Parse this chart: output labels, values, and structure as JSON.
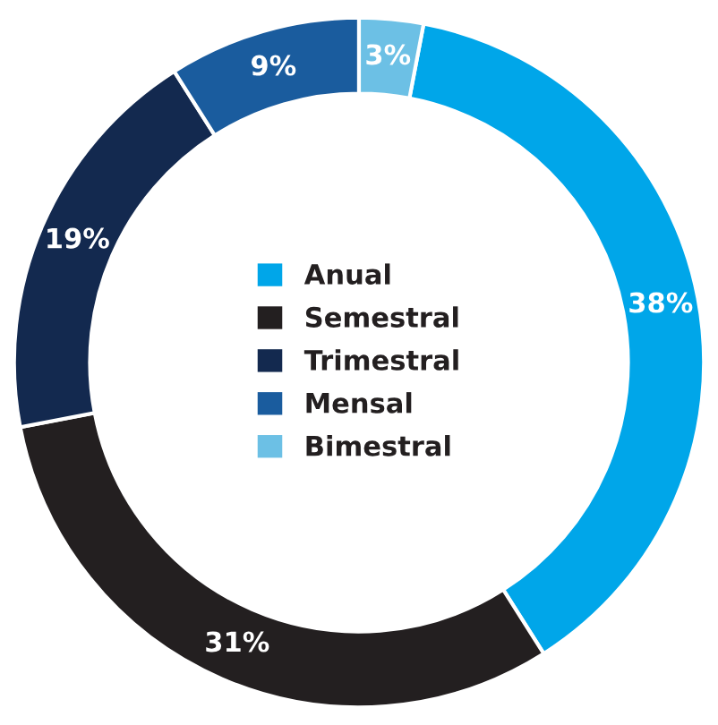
{
  "chart_data": {
    "type": "donut",
    "categories": [
      "Anual",
      "Semestral",
      "Trimestral",
      "Mensal",
      "Bimestral"
    ],
    "values": [
      38,
      31,
      19,
      9,
      3
    ],
    "colors": [
      "#00a6e9",
      "#231f20",
      "#13294f",
      "#1a5c9e",
      "#6cc0e5"
    ],
    "value_labels": [
      "38%",
      "31%",
      "19%",
      "9%",
      "3%"
    ],
    "legend": "center"
  }
}
